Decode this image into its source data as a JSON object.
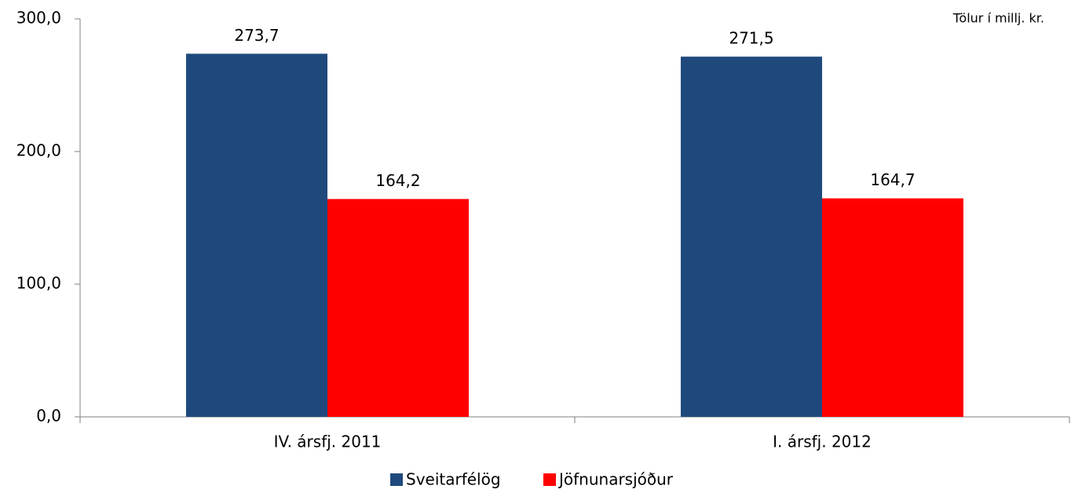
{
  "chart_data": {
    "type": "bar",
    "annotation": "Tölur í millj. kr.",
    "categories": [
      "IV. ársfj. 2011",
      "I. ársfj. 2012"
    ],
    "series": [
      {
        "name": "Sveitarfélög",
        "color": "#1f497d",
        "values": [
          273.7,
          271.5
        ],
        "value_labels": [
          "273,7",
          "271,5"
        ]
      },
      {
        "name": "Jöfnunarsjóður",
        "color": "#ff0000",
        "values": [
          164.2,
          164.7
        ],
        "value_labels": [
          "164,2",
          "164,7"
        ]
      }
    ],
    "ylim": [
      0,
      300
    ],
    "yticks": [
      {
        "value": 0,
        "label": "0,0"
      },
      {
        "value": 100,
        "label": "100,0"
      },
      {
        "value": 200,
        "label": "200,0"
      },
      {
        "value": 300,
        "label": "300,0"
      }
    ],
    "grid": false,
    "legend": "bottom"
  }
}
